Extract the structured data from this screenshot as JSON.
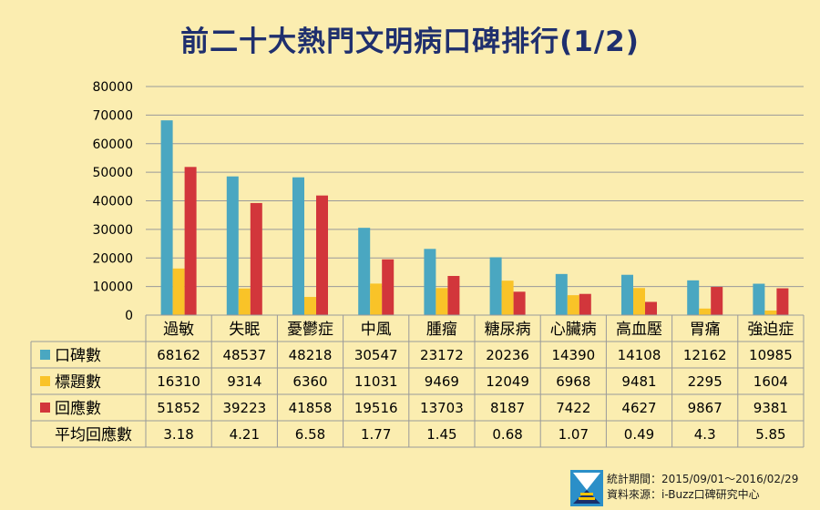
{
  "title": "前二十大熱門文明病口碑排行(1/2)",
  "chart_data": {
    "type": "bar",
    "title": "前二十大熱門文明病口碑排行(1/2)",
    "categories": [
      "過敏",
      "失眠",
      "憂鬱症",
      "中風",
      "腫瘤",
      "糖尿病",
      "心臟病",
      "高血壓",
      "胃痛",
      "強迫症"
    ],
    "series": [
      {
        "name": "口碑數",
        "color": "#4aa7c1",
        "values": [
          68162,
          48537,
          48218,
          30547,
          23172,
          20236,
          14390,
          14108,
          12162,
          10985
        ]
      },
      {
        "name": "標題數",
        "color": "#f9c328",
        "values": [
          16310,
          9314,
          6360,
          11031,
          9469,
          12049,
          6968,
          9481,
          2295,
          1604
        ]
      },
      {
        "name": "回應數",
        "color": "#d2363b",
        "values": [
          51852,
          39223,
          41858,
          19516,
          13703,
          8187,
          7422,
          4627,
          9867,
          9381
        ]
      }
    ],
    "extra_row": {
      "name": "平均回應數",
      "values": [
        "3.18",
        "4.21",
        "6.58",
        "1.77",
        "1.45",
        "0.68",
        "1.07",
        "0.49",
        "4.3",
        "5.85"
      ]
    },
    "ylim": [
      0,
      80000
    ],
    "yticks": [
      "0",
      "10000",
      "20000",
      "30000",
      "40000",
      "50000",
      "60000",
      "70000",
      "80000"
    ],
    "grid": true,
    "legend": "data-table"
  },
  "footer": {
    "period": "統計期間：2015/09/01～2016/02/29",
    "source": "資料來源：i-Buzz口碑研究中心"
  }
}
